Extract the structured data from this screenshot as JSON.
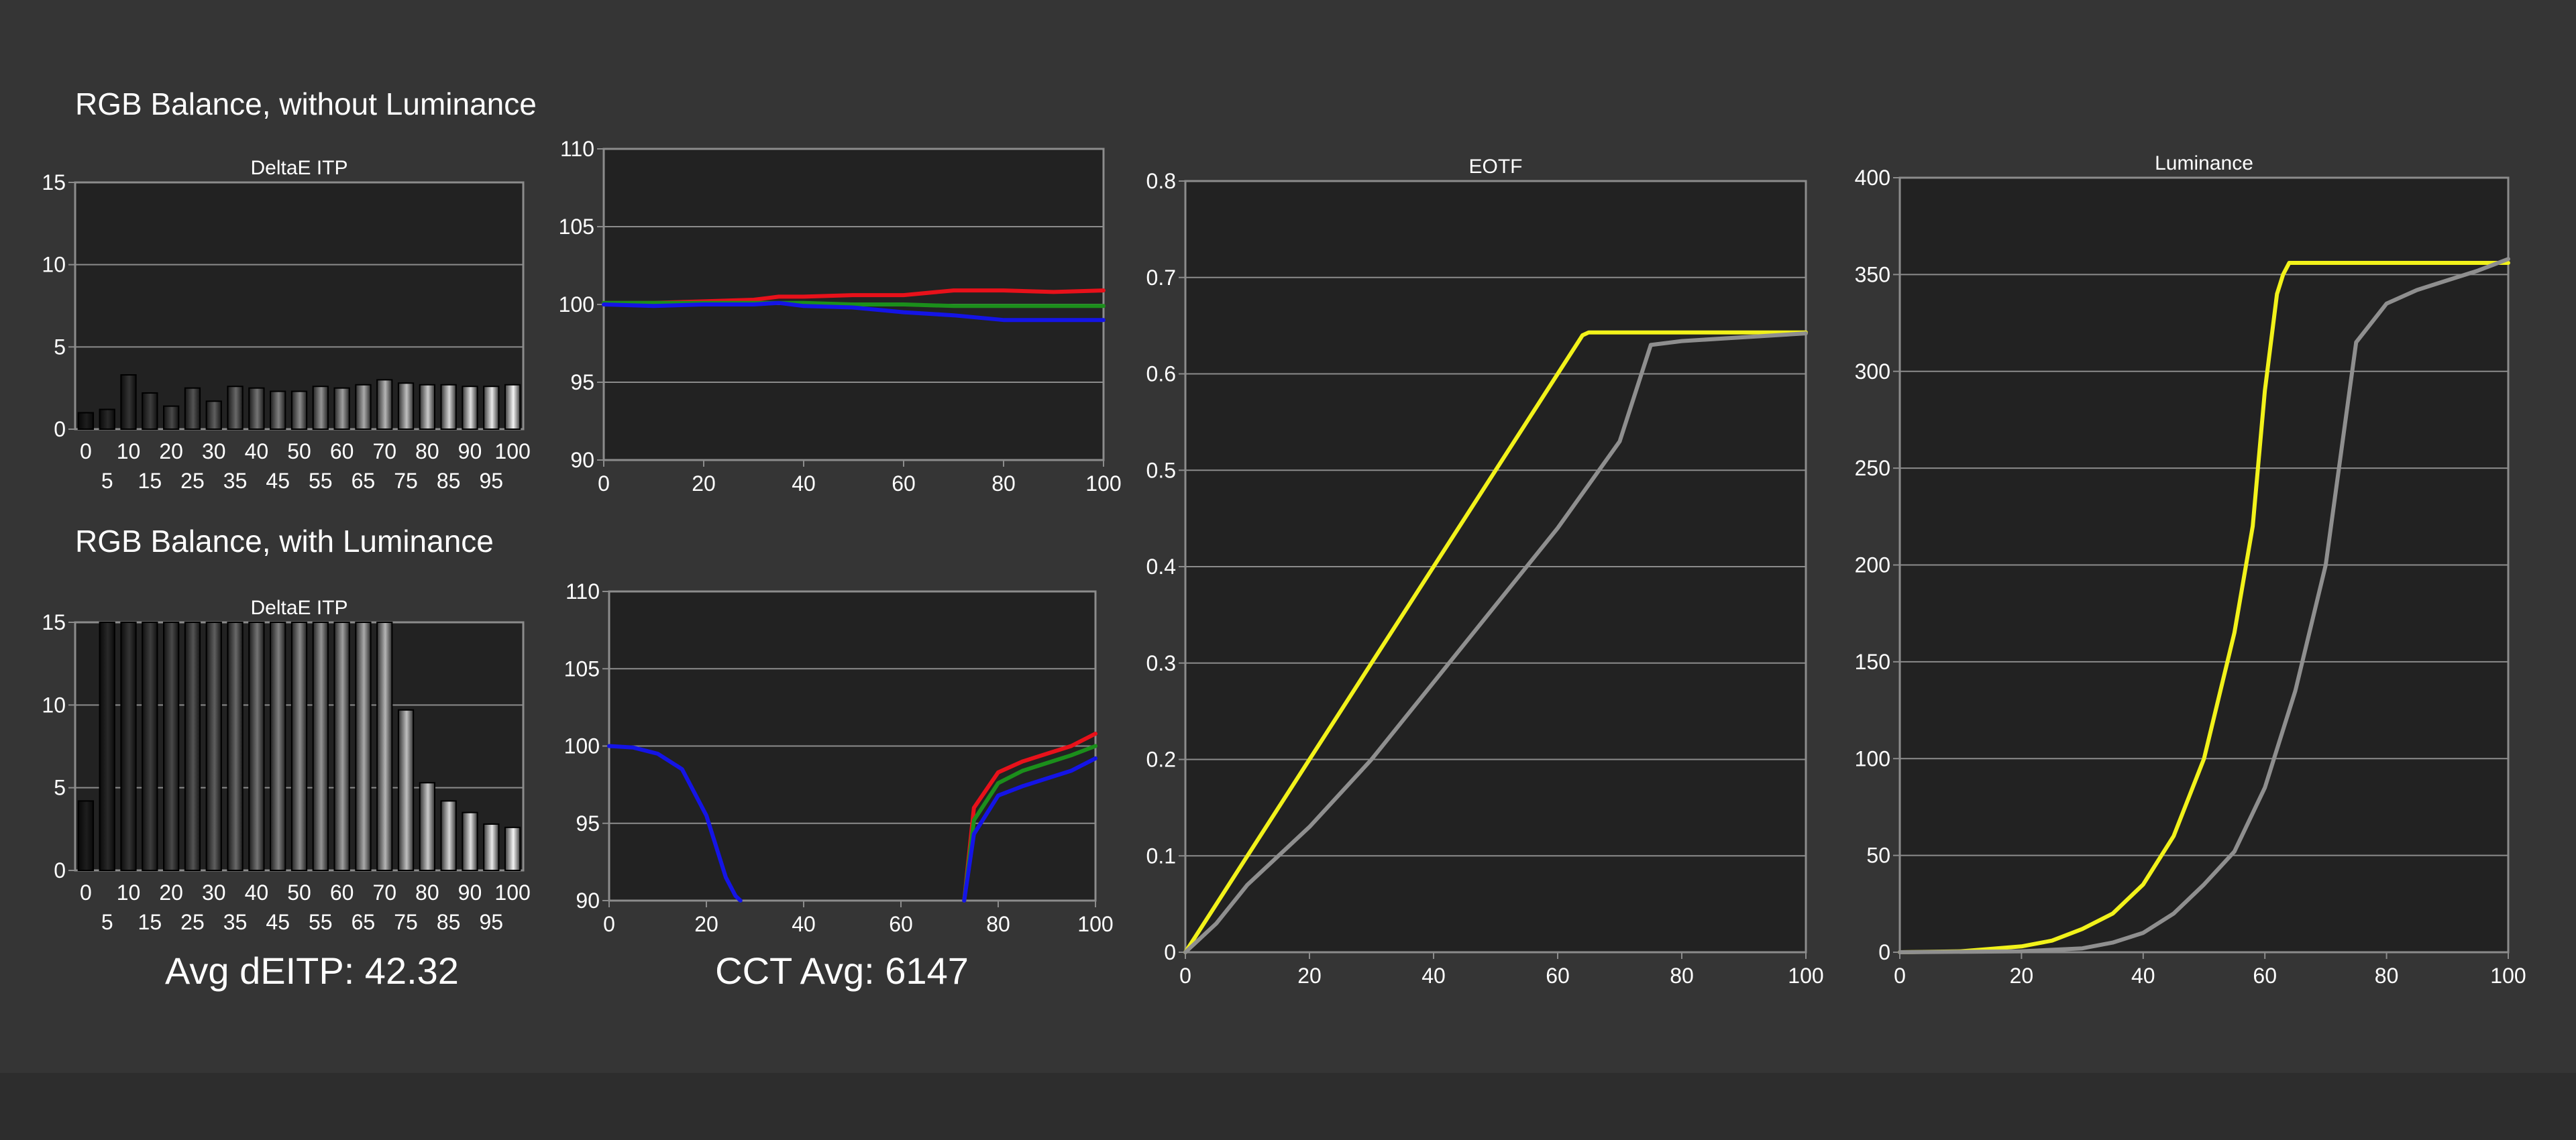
{
  "headings": {
    "without_luminance": "RGB Balance, without Luminance",
    "with_luminance": "RGB Balance, with Luminance"
  },
  "summary": {
    "avg_deitp": "Avg dEITP: 42.32",
    "cct_avg": "CCT Avg: 6147"
  },
  "colors": {
    "background": "#353535",
    "plot_background": "#222222",
    "grid": "#8c8c8c",
    "red": "#e8111a",
    "green": "#1b8f1b",
    "blue": "#1414e6",
    "yellow": "#f2f21a",
    "gray": "#8f8f8f"
  },
  "chart_data": [
    {
      "id": "deltae-without",
      "type": "bar",
      "title": "DeltaE ITP",
      "categories": [
        0,
        5,
        10,
        15,
        20,
        25,
        30,
        35,
        40,
        45,
        50,
        55,
        60,
        65,
        70,
        75,
        80,
        85,
        90,
        95,
        100
      ],
      "values": [
        1.0,
        1.2,
        3.3,
        2.2,
        1.4,
        2.5,
        1.7,
        2.6,
        2.5,
        2.3,
        2.3,
        2.6,
        2.5,
        2.7,
        3.0,
        2.8,
        2.7,
        2.7,
        2.6,
        2.6,
        2.7
      ],
      "ylim": [
        0,
        15
      ],
      "yticks": [
        0,
        5,
        10,
        15
      ],
      "xticks_row1": [
        "0",
        "10",
        "20",
        "30",
        "40",
        "50",
        "60",
        "70",
        "80",
        "90",
        "100"
      ],
      "xticks_row2": [
        "5",
        "15",
        "25",
        "35",
        "45",
        "55",
        "65",
        "75",
        "85",
        "95"
      ]
    },
    {
      "id": "rgb-without",
      "type": "line",
      "x": [
        0,
        10,
        20,
        30,
        35,
        40,
        50,
        60,
        70,
        80,
        90,
        100
      ],
      "series": [
        {
          "color": "red",
          "values": [
            100.1,
            100.1,
            100.2,
            100.3,
            100.5,
            100.5,
            100.6,
            100.6,
            100.9,
            100.9,
            100.8,
            100.9
          ]
        },
        {
          "color": "green",
          "values": [
            100.1,
            100.1,
            100.1,
            100.1,
            100.1,
            100.1,
            100.0,
            100.0,
            99.9,
            99.9,
            99.9,
            99.9
          ]
        },
        {
          "color": "blue",
          "values": [
            100.0,
            99.9,
            100.0,
            100.0,
            100.1,
            99.9,
            99.8,
            99.5,
            99.3,
            99.0,
            99.0,
            99.0
          ]
        }
      ],
      "xlim": [
        0,
        100
      ],
      "ylim": [
        90,
        110
      ],
      "xticks": [
        "0",
        "20",
        "40",
        "60",
        "80",
        "100"
      ],
      "yticks": [
        "90",
        "95",
        "100",
        "105",
        "110"
      ]
    },
    {
      "id": "deltae-with",
      "type": "bar",
      "title": "DeltaE ITP",
      "categories": [
        0,
        5,
        10,
        15,
        20,
        25,
        30,
        35,
        40,
        45,
        50,
        55,
        60,
        65,
        70,
        75,
        80,
        85,
        90,
        95,
        100
      ],
      "values": [
        4.2,
        15,
        15,
        15,
        15,
        15,
        15,
        15,
        15,
        15,
        15,
        15,
        15,
        15,
        15,
        9.7,
        5.3,
        4.2,
        3.5,
        2.8,
        2.6
      ],
      "ylim": [
        0,
        15
      ],
      "yticks": [
        0,
        5,
        10,
        15
      ],
      "xticks_row1": [
        "0",
        "10",
        "20",
        "30",
        "40",
        "50",
        "60",
        "70",
        "80",
        "90",
        "100"
      ],
      "xticks_row2": [
        "5",
        "15",
        "25",
        "35",
        "45",
        "55",
        "65",
        "75",
        "85",
        "95"
      ]
    },
    {
      "id": "rgb-with",
      "type": "line",
      "series": [
        {
          "color": "red",
          "x": [
            73,
            75,
            80,
            85,
            90,
            95,
            100
          ],
          "values": [
            90.0,
            96.0,
            98.3,
            99.0,
            99.5,
            100.0,
            100.8
          ]
        },
        {
          "color": "green",
          "x": [
            73,
            75,
            80,
            85,
            90,
            95,
            100
          ],
          "values": [
            90.0,
            95.2,
            97.6,
            98.4,
            98.9,
            99.4,
            100.0
          ]
        },
        {
          "color": "blue",
          "x": [
            0,
            5,
            10,
            15,
            20,
            22,
            24,
            26,
            27
          ],
          "values": [
            100.0,
            99.9,
            99.5,
            98.5,
            95.5,
            93.5,
            91.5,
            90.3,
            90.0
          ]
        },
        {
          "color": "blue",
          "x": [
            73,
            75,
            80,
            85,
            90,
            95,
            100
          ],
          "values": [
            90.0,
            94.3,
            96.8,
            97.4,
            97.9,
            98.4,
            99.2
          ]
        }
      ],
      "xlim": [
        0,
        100
      ],
      "ylim": [
        90,
        110
      ],
      "xticks": [
        "0",
        "20",
        "40",
        "60",
        "80",
        "100"
      ],
      "yticks": [
        "90",
        "95",
        "100",
        "105",
        "110"
      ]
    },
    {
      "id": "eotf",
      "type": "line",
      "title": "EOTF",
      "series": [
        {
          "color": "yellow",
          "x": [
            0,
            5,
            10,
            15,
            20,
            25,
            30,
            35,
            40,
            45,
            50,
            55,
            60,
            63,
            64,
            65,
            70,
            80,
            90,
            100
          ],
          "values": [
            0,
            0.05,
            0.1,
            0.15,
            0.2,
            0.25,
            0.3,
            0.35,
            0.4,
            0.45,
            0.5,
            0.55,
            0.6,
            0.63,
            0.64,
            0.643,
            0.643,
            0.643,
            0.643,
            0.643
          ]
        },
        {
          "color": "gray",
          "x": [
            0,
            5,
            10,
            20,
            30,
            40,
            50,
            60,
            70,
            75,
            80,
            90,
            100
          ],
          "values": [
            0,
            0.03,
            0.07,
            0.13,
            0.2,
            0.28,
            0.36,
            0.44,
            0.53,
            0.63,
            0.634,
            0.638,
            0.642
          ]
        }
      ],
      "xlim": [
        0,
        100
      ],
      "ylim": [
        0,
        0.8
      ],
      "xticks": [
        "0",
        "20",
        "40",
        "60",
        "80",
        "100"
      ],
      "yticks": [
        "0",
        "0.1",
        "0.2",
        "0.3",
        "0.4",
        "0.5",
        "0.6",
        "0.7",
        "0.8"
      ]
    },
    {
      "id": "luminance",
      "type": "line",
      "title": "Luminance",
      "series": [
        {
          "color": "yellow",
          "x": [
            0,
            10,
            20,
            25,
            30,
            35,
            40,
            45,
            50,
            55,
            58,
            60,
            62,
            63,
            64,
            65,
            70,
            80,
            90,
            100
          ],
          "values": [
            0,
            0.5,
            3,
            6,
            12,
            20,
            35,
            60,
            100,
            165,
            220,
            290,
            340,
            350,
            356,
            356,
            356,
            356,
            356,
            356
          ]
        },
        {
          "color": "gray",
          "x": [
            0,
            20,
            30,
            35,
            40,
            45,
            50,
            55,
            60,
            65,
            70,
            75,
            80,
            85,
            90,
            95,
            100
          ],
          "values": [
            0,
            0.5,
            2,
            5,
            10,
            20,
            35,
            52,
            85,
            135,
            200,
            315,
            335,
            342,
            347,
            352,
            358
          ]
        }
      ],
      "xlim": [
        0,
        100
      ],
      "ylim": [
        0,
        400
      ],
      "xticks": [
        "0",
        "20",
        "40",
        "60",
        "80",
        "100"
      ],
      "yticks": [
        "0",
        "50",
        "100",
        "150",
        "200",
        "250",
        "300",
        "350",
        "400"
      ]
    }
  ]
}
